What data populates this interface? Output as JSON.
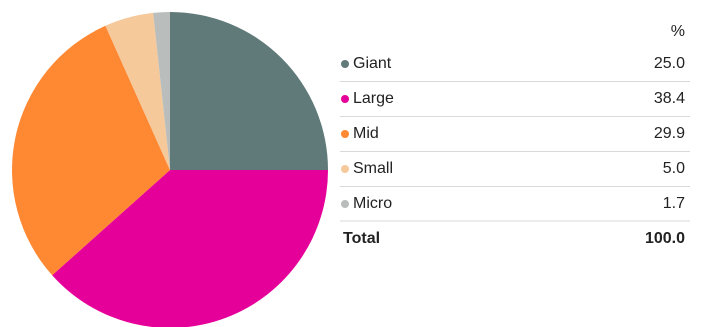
{
  "chart_data": {
    "type": "pie",
    "categories": [
      "Giant",
      "Large",
      "Mid",
      "Small",
      "Micro"
    ],
    "values": [
      25.0,
      38.4,
      29.9,
      5.0,
      1.7
    ],
    "value_labels": [
      "25.0",
      "38.4",
      "29.9",
      "5.0",
      "1.7"
    ],
    "colors": [
      "#5f7a78",
      "#e6009a",
      "#ff8833",
      "#f5c99a",
      "#b9bdbb"
    ],
    "value_header": "%",
    "total_label": "Total",
    "total_value_label": "100.0"
  }
}
